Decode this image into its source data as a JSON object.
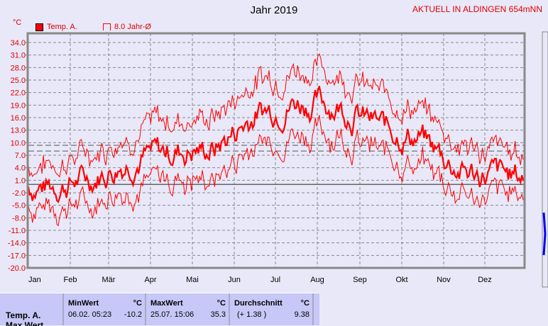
{
  "header": {
    "title": "Jahr 2019",
    "current": "AKTUELL IN ALDINGEN 654mNN"
  },
  "legend": {
    "series1": "Temp. A.",
    "series2": "8.0 Jahr-Ø",
    "color1": "#ff0000"
  },
  "chart_data": {
    "type": "line",
    "title": "Jahr 2019",
    "ylabel": "°C",
    "ylim": [
      -20,
      35.5
    ],
    "yticks": [
      "34.0",
      "31.0",
      "28.0",
      "25.0",
      "22.0",
      "19.0",
      "16.0",
      "13.0",
      "10.0",
      "7.0",
      "4.0",
      "1.0",
      "-2.0",
      "-5.0",
      "-8.0",
      "-11.0",
      "-14.0",
      "-17.0",
      "-20.0"
    ],
    "months": [
      "Jan",
      "Feb",
      "Mär",
      "Apr",
      "Mai",
      "Jun",
      "Jul",
      "Aug",
      "Sep",
      "Okt",
      "Nov",
      "Dez"
    ],
    "monthly_mean_approx": [
      -0.5,
      1.5,
      6,
      8,
      8.5,
      17,
      20,
      19,
      14,
      11,
      3,
      2
    ],
    "reference_lines": {
      "long_term_avg": 8.0,
      "year_avg": 9.38,
      "zero": 0
    },
    "series": [
      {
        "name": "Temp. A. (Mittel)"
      },
      {
        "name": "Temp. A. (Max)"
      },
      {
        "name": "Temp. A. (Min)"
      }
    ]
  },
  "table": {
    "row_label": "Temp. A.",
    "row_label2": "Max Wert",
    "min": {
      "header": "MinWert",
      "unit": "°C",
      "date": "06.02.  05:23",
      "value": "-10.2"
    },
    "max": {
      "header": "MaxWert",
      "unit": "°C",
      "date": "25.07.  15:06",
      "value": "35.3"
    },
    "avg": {
      "header": "Durchschnitt",
      "unit": "°C",
      "diff": "(+ 1.38 )",
      "value": "9.38"
    }
  }
}
